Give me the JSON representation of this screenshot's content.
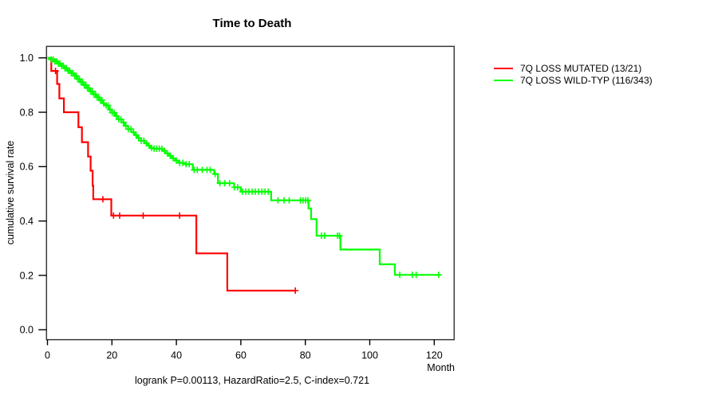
{
  "title": "Time to Death",
  "footer": "logrank P=0.00113, HazardRatio=2.5, C-index=0.721",
  "chart_data": {
    "type": "line",
    "subtype": "kaplan-meier-step-curve",
    "title": "Time to Death",
    "xlabel": "Month",
    "ylabel": "cumulative survival rate",
    "xlim": [
      0,
      126
    ],
    "ylim": [
      -0.04,
      1.04
    ],
    "x_ticks": [
      0,
      20,
      40,
      60,
      80,
      100,
      120
    ],
    "y_ticks": [
      0.0,
      0.2,
      0.4,
      0.6,
      0.8,
      1.0
    ],
    "grid": false,
    "legend_position": "outside-top-right",
    "annotation": "logrank P=0.00113, HazardRatio=2.5, C-index=0.721",
    "series": [
      {
        "id": "mutated",
        "name": "7Q LOSS MUTATED (13/21)",
        "color": "#ff0000",
        "end_time": 76.9,
        "steps": [
          [
            0,
            1.0
          ],
          [
            1.2,
            0.952
          ],
          [
            3.0,
            0.904
          ],
          [
            3.7,
            0.851
          ],
          [
            5.1,
            0.8
          ],
          [
            9.6,
            0.745
          ],
          [
            10.7,
            0.69
          ],
          [
            12.6,
            0.637
          ],
          [
            13.4,
            0.585
          ],
          [
            14.0,
            0.53
          ],
          [
            14.2,
            0.48
          ],
          [
            19.8,
            0.42
          ],
          [
            46.2,
            0.281
          ],
          [
            55.8,
            0.144
          ]
        ],
        "censor_times": [
          2.5,
          17.2,
          20.5,
          22.4,
          29.7,
          41.0,
          76.9
        ]
      },
      {
        "id": "wildtype",
        "name": "7Q LOSS WILD-TYP (116/343)",
        "color": "#00ff00",
        "end_time": 121.8,
        "steps": [
          [
            0,
            1.0
          ],
          [
            1.0,
            0.994
          ],
          [
            2.0,
            0.987
          ],
          [
            3.0,
            0.979
          ],
          [
            4.0,
            0.971
          ],
          [
            5.0,
            0.962
          ],
          [
            6.0,
            0.953
          ],
          [
            7.0,
            0.944
          ],
          [
            8.0,
            0.934
          ],
          [
            9.0,
            0.922
          ],
          [
            10.0,
            0.911
          ],
          [
            11.0,
            0.9
          ],
          [
            12.0,
            0.889
          ],
          [
            13.0,
            0.877
          ],
          [
            14.0,
            0.866
          ],
          [
            15.0,
            0.855
          ],
          [
            16.0,
            0.844
          ],
          [
            17.0,
            0.833
          ],
          [
            17.8,
            0.825
          ],
          [
            19.0,
            0.81
          ],
          [
            20.0,
            0.798
          ],
          [
            21.0,
            0.786
          ],
          [
            22.0,
            0.774
          ],
          [
            23.0,
            0.762
          ],
          [
            24.0,
            0.75
          ],
          [
            25.0,
            0.738
          ],
          [
            26.0,
            0.727
          ],
          [
            27.0,
            0.716
          ],
          [
            28.0,
            0.705
          ],
          [
            29.0,
            0.695
          ],
          [
            30.0,
            0.686
          ],
          [
            31.0,
            0.677
          ],
          [
            31.8,
            0.669
          ],
          [
            33.0,
            0.666
          ],
          [
            35.6,
            0.658
          ],
          [
            36.6,
            0.649
          ],
          [
            37.6,
            0.64
          ],
          [
            38.6,
            0.631
          ],
          [
            39.6,
            0.622
          ],
          [
            40.8,
            0.614
          ],
          [
            42.3,
            0.609
          ],
          [
            45.1,
            0.588
          ],
          [
            51.7,
            0.573
          ],
          [
            52.9,
            0.539
          ],
          [
            57.9,
            0.524
          ],
          [
            60.0,
            0.508
          ],
          [
            69.4,
            0.476
          ],
          [
            81.0,
            0.446
          ],
          [
            81.8,
            0.407
          ],
          [
            83.5,
            0.346
          ],
          [
            90.9,
            0.295
          ],
          [
            103.1,
            0.241
          ],
          [
            107.8,
            0.202
          ]
        ],
        "censor_times": [
          1.2,
          1.8,
          2.3,
          2.9,
          3.4,
          3.9,
          4.4,
          4.9,
          5.4,
          5.9,
          6.4,
          6.9,
          7.4,
          7.9,
          8.4,
          8.9,
          9.4,
          9.9,
          10.4,
          10.9,
          11.4,
          11.9,
          12.4,
          12.9,
          13.4,
          13.9,
          14.4,
          14.9,
          15.4,
          15.9,
          16.4,
          16.9,
          17.4,
          18.2,
          18.8,
          19.4,
          20.1,
          20.7,
          21.4,
          22.1,
          22.8,
          23.6,
          24.3,
          25.1,
          25.9,
          26.7,
          27.5,
          28.3,
          29.1,
          29.9,
          30.7,
          31.5,
          32.3,
          33.1,
          33.9,
          34.7,
          35.5,
          36.3,
          37.2,
          38.1,
          39.0,
          40.0,
          41.0,
          42.0,
          43.0,
          44.0,
          45.5,
          46.5,
          48.0,
          49.5,
          50.5,
          52.0,
          53.5,
          55.0,
          56.5,
          58.0,
          59.0,
          60.5,
          61.5,
          62.5,
          63.5,
          64.5,
          65.5,
          66.5,
          67.5,
          68.5,
          71.5,
          73.4,
          75.0,
          78.5,
          79.3,
          80.1,
          80.8,
          85.0,
          86.0,
          90.0,
          90.6,
          109.3,
          113.2,
          114.4,
          121.4
        ]
      }
    ]
  }
}
